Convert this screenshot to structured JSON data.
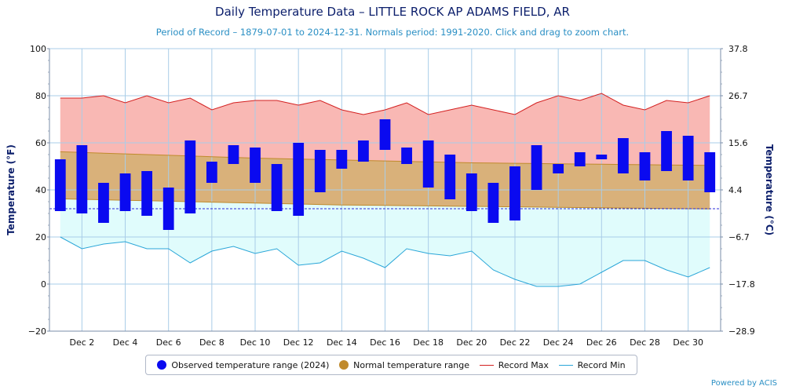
{
  "header": {
    "title": "Daily Temperature Data – LITTLE ROCK AP ADAMS FIELD, AR",
    "subtitle": "Period of Record – 1879-07-01 to 2024-12-31. Normals period: 1991-2020. Click and drag to zoom chart."
  },
  "credit": "Powered by ACIS",
  "legend": {
    "observed": "Observed temperature range (2024)",
    "normal": "Normal temperature range",
    "record_max": "Record Max",
    "record_min": "Record Min"
  },
  "colors": {
    "observed": "#0a0af0",
    "normal_fill": "#d9b17a",
    "normal_line": "#c08a2c",
    "record_max_line": "#d32020",
    "record_max_fill": "#f9b8b4",
    "record_min_line": "#2aa6d8",
    "record_min_fill": "#e0fcfc",
    "freeze_line": "#2b2bd8",
    "grid": "#a9cde8"
  },
  "chart_data": {
    "type": "bar",
    "title": "Daily Temperature Data – LITTLE ROCK AP ADAMS FIELD, AR",
    "subtitle": "Period of Record – 1879-07-01 to 2024-12-31. Normals period: 1991-2020. Click and drag to zoom chart.",
    "xlabel": "",
    "ylabel": "Temperature (°F)",
    "ylabel_right": "Temperature (°C)",
    "ylim": [
      -20,
      100
    ],
    "y_ticks": [
      "−20",
      "0",
      "20",
      "40",
      "60",
      "80",
      "100"
    ],
    "y2_ticks": [
      "−28.9",
      "−17.8",
      "−6.7",
      "4.4",
      "15.6",
      "26.7",
      "37.8"
    ],
    "x_tick_labels": [
      "Dec 2",
      "Dec 4",
      "Dec 6",
      "Dec 8",
      "Dec 10",
      "Dec 12",
      "Dec 14",
      "Dec 16",
      "Dec 18",
      "Dec 20",
      "Dec 22",
      "Dec 24",
      "Dec 26",
      "Dec 28",
      "Dec 30"
    ],
    "days": [
      1,
      2,
      3,
      4,
      5,
      6,
      7,
      8,
      9,
      10,
      11,
      12,
      13,
      14,
      15,
      16,
      17,
      18,
      19,
      20,
      21,
      22,
      23,
      24,
      25,
      26,
      27,
      28,
      29,
      30,
      31
    ],
    "freezing_line": 32,
    "grid": true,
    "legend_position": "bottom",
    "series": [
      {
        "name": "Observed temperature range (2024)",
        "low": [
          31,
          30,
          26,
          31,
          29,
          23,
          30,
          43,
          51,
          43,
          31,
          29,
          39,
          49,
          52,
          57,
          51,
          41,
          36,
          31,
          26,
          27,
          40,
          47,
          50,
          53,
          47,
          44,
          48,
          44,
          39
        ],
        "high": [
          53,
          59,
          43,
          47,
          48,
          41,
          61,
          52,
          59,
          58,
          51,
          60,
          57,
          57,
          61,
          70,
          58,
          61,
          55,
          47,
          43,
          50,
          59,
          51,
          56,
          55,
          62,
          56,
          65,
          63,
          56
        ]
      },
      {
        "name": "Normal temperature range",
        "low": [
          36.2,
          36.0,
          35.8,
          35.6,
          35.4,
          35.2,
          35.0,
          34.8,
          34.6,
          34.4,
          34.2,
          34.0,
          33.8,
          33.6,
          33.5,
          33.4,
          33.3,
          33.2,
          33.1,
          33.0,
          32.9,
          32.8,
          32.7,
          32.6,
          32.5,
          32.4,
          32.3,
          32.2,
          32.1,
          32.0,
          31.9
        ],
        "high": [
          56.2,
          55.9,
          55.6,
          55.3,
          55.0,
          54.7,
          54.4,
          54.1,
          53.8,
          53.5,
          53.3,
          53.1,
          52.9,
          52.7,
          52.5,
          52.3,
          52.1,
          51.9,
          51.7,
          51.5,
          51.4,
          51.3,
          51.2,
          51.1,
          51.0,
          50.9,
          50.8,
          50.7,
          50.6,
          50.5,
          50.4
        ]
      },
      {
        "name": "Record Max",
        "values": [
          79,
          79,
          80,
          77,
          80,
          77,
          79,
          74,
          77,
          78,
          78,
          76,
          78,
          74,
          72,
          74,
          77,
          72,
          74,
          76,
          74,
          72,
          77,
          80,
          78,
          81,
          76,
          74,
          78,
          77,
          80
        ]
      },
      {
        "name": "Record Min",
        "values": [
          20,
          15,
          17,
          18,
          15,
          15,
          9,
          14,
          16,
          13,
          15,
          8,
          9,
          14,
          11,
          7,
          15,
          13,
          12,
          14,
          6,
          2,
          -1,
          -1,
          0,
          5,
          10,
          10,
          6,
          3,
          7
        ]
      }
    ]
  }
}
